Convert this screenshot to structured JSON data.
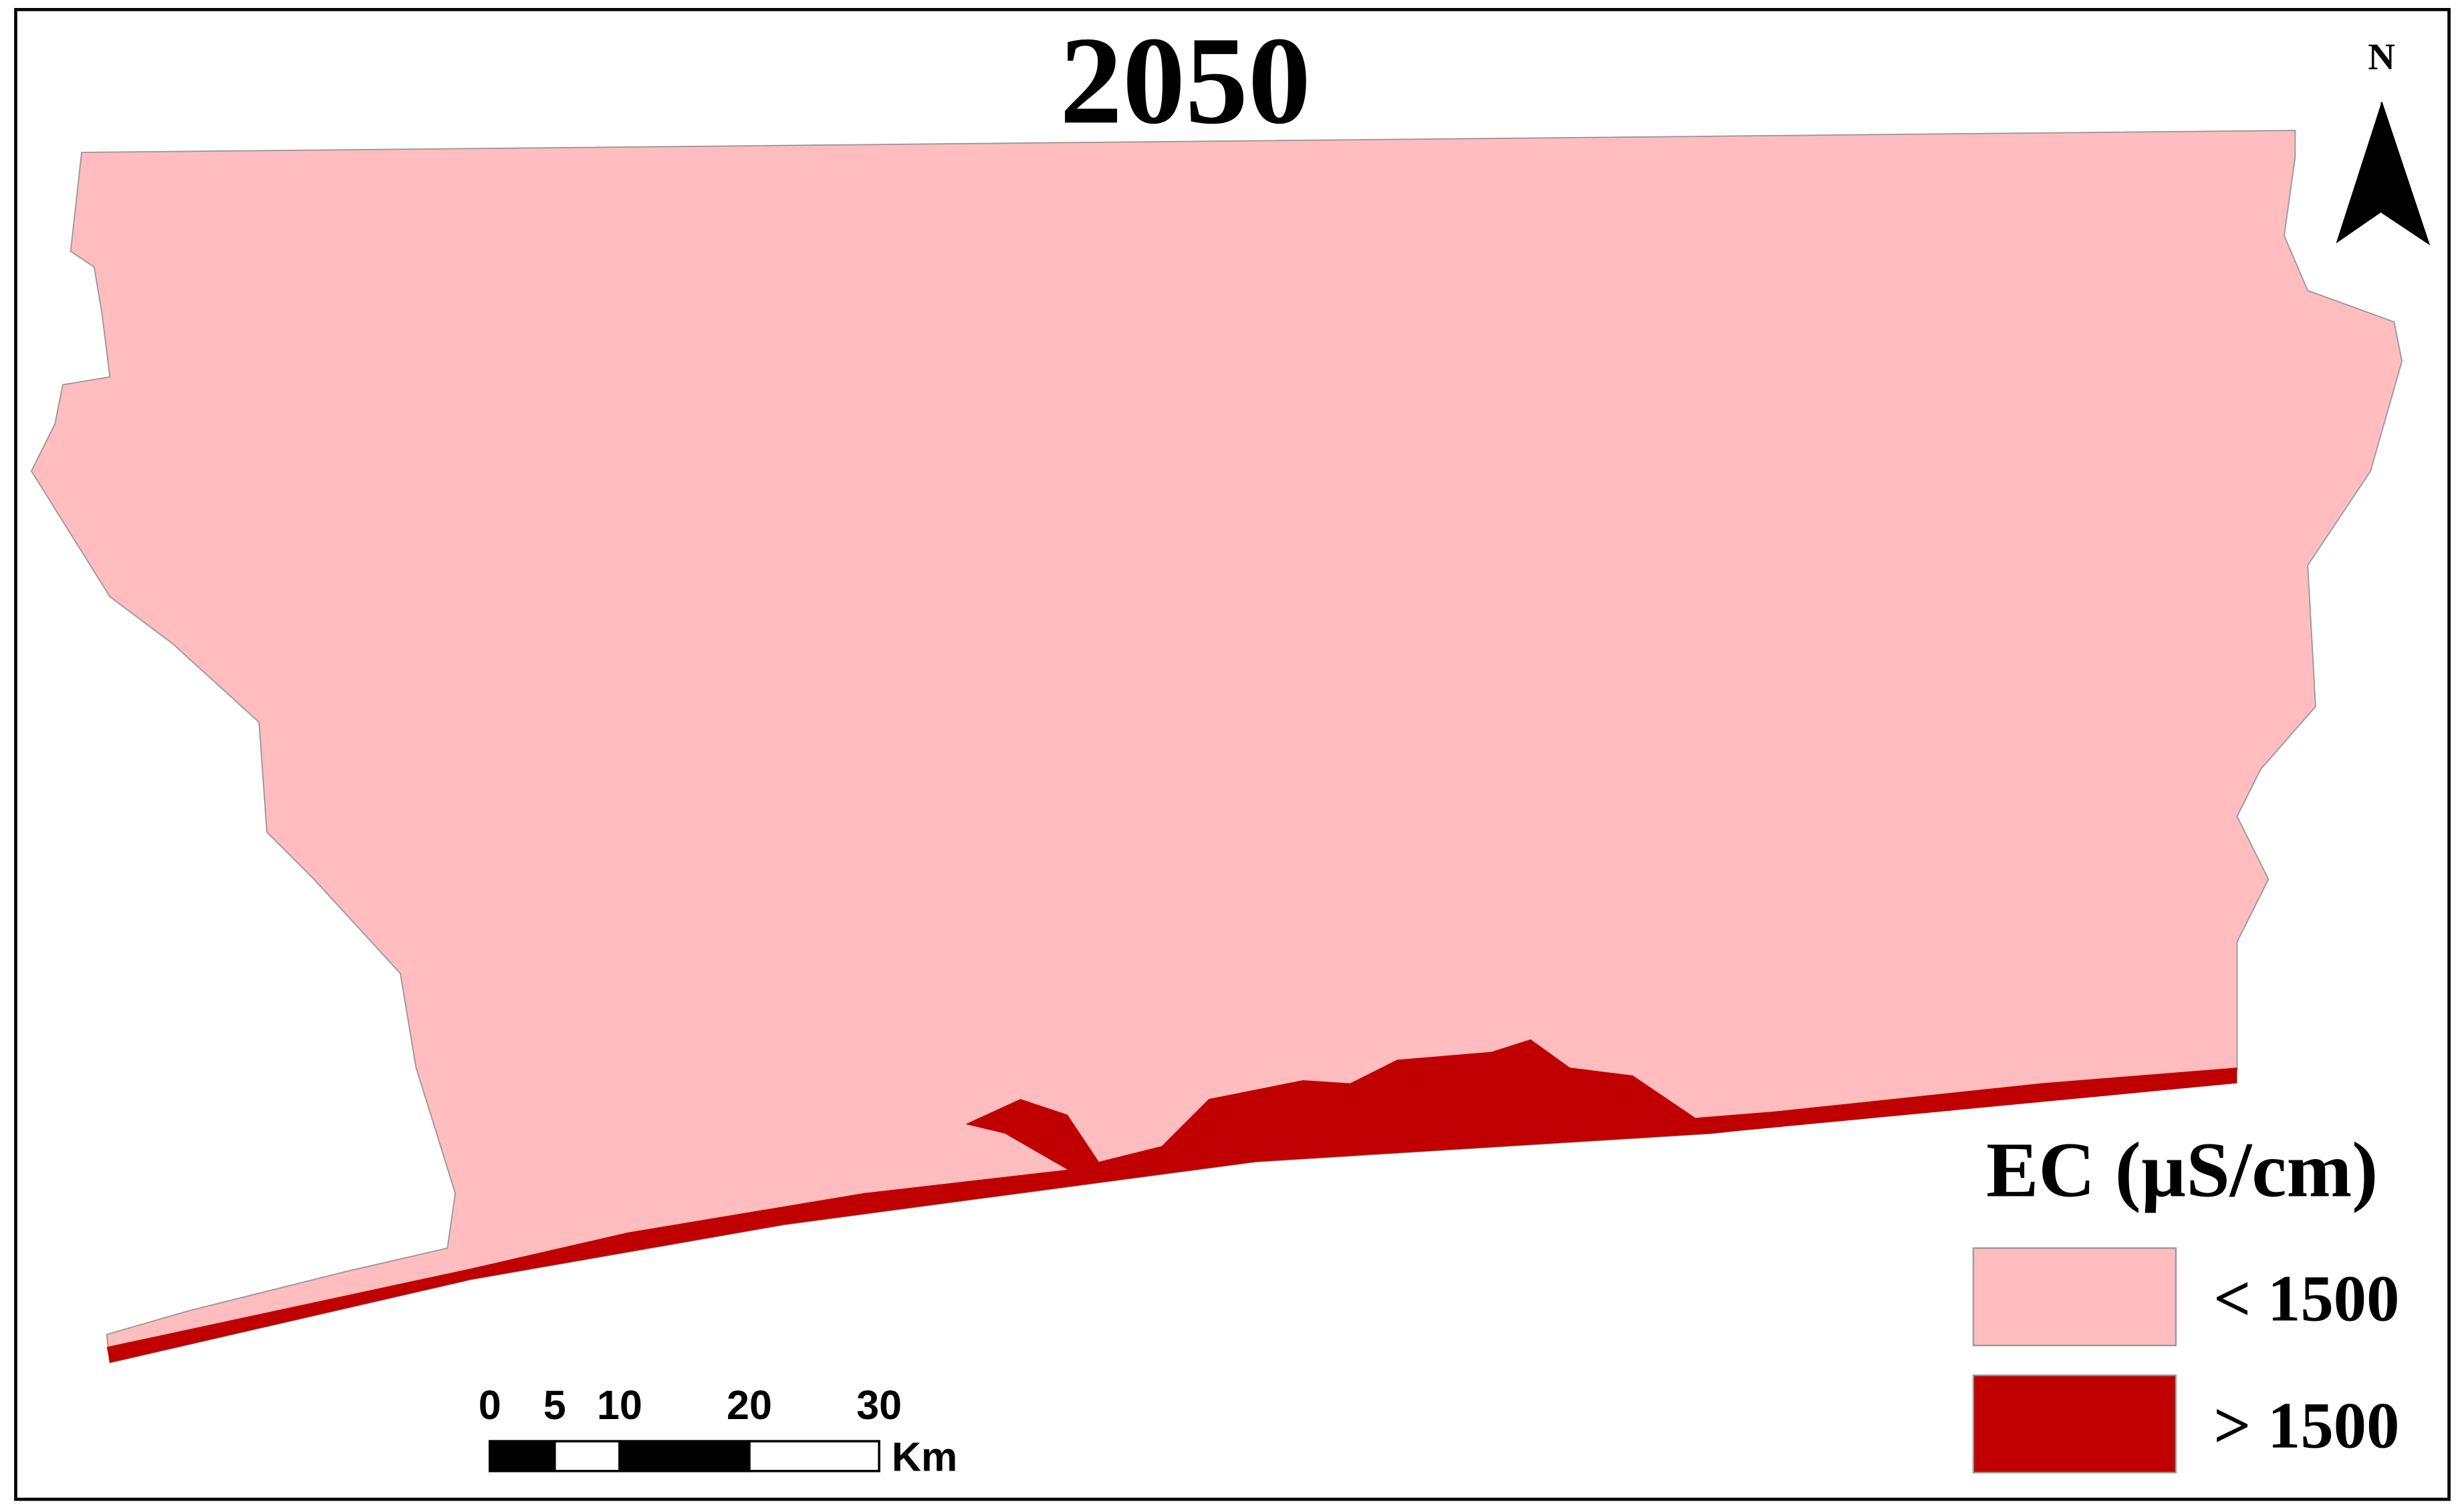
{
  "map": {
    "title": "2050",
    "north_label": "N",
    "legend": {
      "title": "EC (µS/cm)",
      "items": [
        {
          "label": "< 1500",
          "color": "#ffbdbf"
        },
        {
          "label": "> 1500",
          "color": "#c00000"
        }
      ]
    },
    "scale_bar": {
      "ticks": [
        0,
        5,
        10,
        20,
        30
      ],
      "unit": "Km"
    }
  }
}
